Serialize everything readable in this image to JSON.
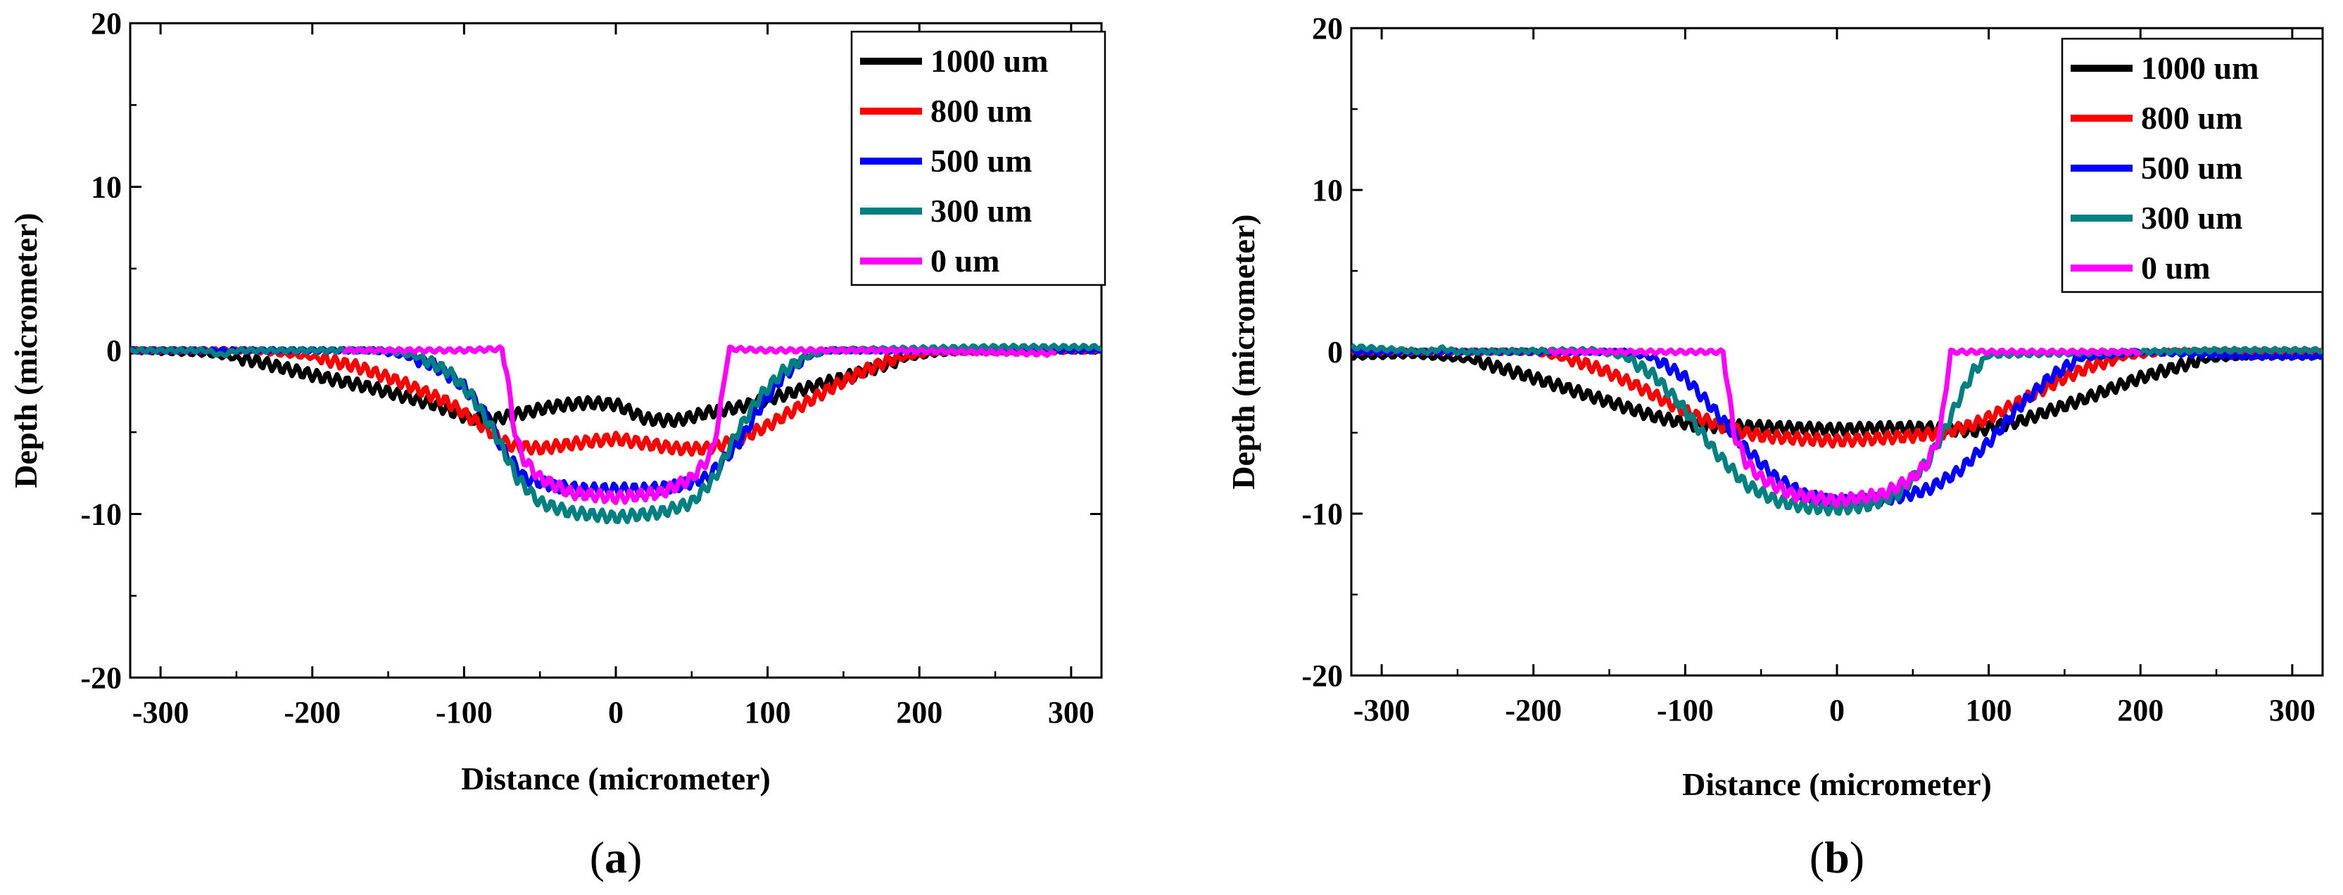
{
  "chart_data": [
    {
      "type": "line",
      "panel_label": "a",
      "xlabel": "Distance (micrometer)",
      "ylabel": "Depth (micrometer)",
      "xlim": [
        -320,
        320
      ],
      "ylim": [
        -20,
        20
      ],
      "xticks": [
        -300,
        -200,
        -100,
        0,
        100,
        200,
        300
      ],
      "yticks": [
        -20,
        -10,
        0,
        10,
        20
      ],
      "legend_position": "top-right",
      "series": [
        {
          "name": "1000 um",
          "color": "#000000",
          "x": [
            -320,
            -270,
            -240,
            -200,
            -160,
            -120,
            -95,
            -80,
            -60,
            -40,
            -20,
            0,
            20,
            40,
            60,
            80,
            100,
            130,
            160,
            190,
            210,
            240,
            300,
            320
          ],
          "y": [
            0,
            -0.2,
            -0.6,
            -1.5,
            -2.3,
            -3.3,
            -4.2,
            -4.2,
            -3.8,
            -3.4,
            -3.2,
            -3.3,
            -4.2,
            -4.3,
            -3.8,
            -3.5,
            -3.0,
            -2.2,
            -1.4,
            -0.5,
            -0.2,
            0,
            0,
            0
          ]
        },
        {
          "name": "800 um",
          "color": "#ff0000",
          "x": [
            -320,
            -240,
            -200,
            -170,
            -140,
            -110,
            -90,
            -70,
            -50,
            -20,
            0,
            20,
            40,
            60,
            80,
            100,
            120,
            140,
            160,
            180,
            210,
            320
          ],
          "y": [
            0,
            0,
            -0.4,
            -1.0,
            -2.0,
            -3.2,
            -4.5,
            -5.8,
            -6.0,
            -5.6,
            -5.4,
            -5.7,
            -6.0,
            -6.0,
            -5.5,
            -4.6,
            -3.5,
            -2.4,
            -1.4,
            -0.6,
            -0.1,
            0
          ]
        },
        {
          "name": "500 um",
          "color": "#0000ff",
          "x": [
            -320,
            -160,
            -140,
            -120,
            -100,
            -85,
            -75,
            -60,
            -40,
            -20,
            0,
            20,
            40,
            60,
            80,
            95,
            110,
            125,
            140,
            320
          ],
          "y": [
            0,
            0,
            -0.3,
            -0.9,
            -2.2,
            -4.0,
            -6.0,
            -7.8,
            -8.3,
            -8.5,
            -8.5,
            -8.5,
            -8.3,
            -7.8,
            -5.8,
            -3.5,
            -1.6,
            -0.4,
            0,
            0
          ]
        },
        {
          "name": "300 um",
          "color": "#008080",
          "x": [
            -320,
            -270,
            -260,
            -250,
            -150,
            -130,
            -110,
            -95,
            -80,
            -65,
            -50,
            -30,
            0,
            30,
            50,
            65,
            80,
            95,
            110,
            125,
            140,
            250,
            320
          ],
          "y": [
            0,
            0,
            -0.3,
            0,
            0,
            -0.4,
            -1.3,
            -2.8,
            -5.0,
            -7.8,
            -9.3,
            -9.9,
            -10.2,
            -9.9,
            -9.3,
            -7.8,
            -5.0,
            -2.8,
            -1.3,
            -0.4,
            0,
            0.2,
            0.2
          ]
        },
        {
          "name": "0 um",
          "color": "#ff00ff",
          "x": [
            -180,
            -100,
            -75,
            -72,
            -68,
            -62,
            -50,
            -30,
            0,
            30,
            50,
            62,
            68,
            72,
            75,
            100,
            180,
            290
          ],
          "y": [
            0,
            0,
            0.1,
            -1.2,
            -4.3,
            -6.5,
            -7.8,
            -8.7,
            -9.0,
            -8.7,
            -7.8,
            -6.5,
            -4.3,
            -1.2,
            0.1,
            0,
            0,
            -0.2
          ]
        }
      ]
    },
    {
      "type": "line",
      "panel_label": "b",
      "xlabel": "Distance (micrometer)",
      "ylabel": "Depth (micrometer)",
      "xlim": [
        -320,
        320
      ],
      "ylim": [
        -20,
        20
      ],
      "xticks": [
        -300,
        -200,
        -100,
        0,
        100,
        200,
        300
      ],
      "yticks": [
        -20,
        -10,
        0,
        10,
        20
      ],
      "legend_position": "top-right",
      "series": [
        {
          "name": "1000 um",
          "color": "#000000",
          "x": [
            -320,
            -280,
            -240,
            -200,
            -160,
            -120,
            -90,
            -60,
            -30,
            0,
            30,
            60,
            90,
            120,
            160,
            200,
            240,
            280,
            320
          ],
          "y": [
            -0.3,
            -0.2,
            -0.5,
            -1.6,
            -2.8,
            -4.0,
            -4.6,
            -4.6,
            -4.7,
            -4.8,
            -4.7,
            -4.7,
            -4.9,
            -4.3,
            -3.0,
            -1.6,
            -0.5,
            -0.2,
            -0.2
          ]
        },
        {
          "name": "800 um",
          "color": "#ff0000",
          "x": [
            -320,
            -200,
            -170,
            -150,
            -130,
            -110,
            -90,
            -70,
            -50,
            -20,
            0,
            20,
            50,
            70,
            90,
            110,
            130,
            150,
            170,
            190,
            220,
            320
          ],
          "y": [
            0,
            0,
            -0.6,
            -1.3,
            -2.2,
            -3.2,
            -4.1,
            -4.8,
            -5.2,
            -5.4,
            -5.5,
            -5.4,
            -5.2,
            -5.0,
            -4.5,
            -3.6,
            -2.6,
            -1.6,
            -0.8,
            -0.3,
            0,
            0
          ]
        },
        {
          "name": "500 um",
          "color": "#0000ff",
          "x": [
            -320,
            -140,
            -120,
            -100,
            -80,
            -60,
            -40,
            -20,
            0,
            20,
            40,
            60,
            80,
            100,
            120,
            140,
            160,
            200,
            270,
            320
          ],
          "y": [
            0,
            0,
            -0.4,
            -1.6,
            -3.7,
            -6.0,
            -7.8,
            -8.9,
            -9.3,
            -9.2,
            -9.0,
            -8.5,
            -7.4,
            -5.6,
            -3.4,
            -1.6,
            -0.4,
            0,
            -0.3,
            -0.3
          ]
        },
        {
          "name": "300 um",
          "color": "#008080",
          "x": [
            -320,
            -270,
            -260,
            -250,
            -160,
            -140,
            -120,
            -100,
            -80,
            -60,
            -40,
            -20,
            0,
            20,
            40,
            60,
            70,
            80,
            90,
            100,
            250,
            320
          ],
          "y": [
            0.3,
            0,
            0.2,
            0,
            0.1,
            -0.3,
            -1.5,
            -3.6,
            -6.2,
            -8.2,
            -9.2,
            -9.6,
            -9.7,
            -9.5,
            -8.8,
            -6.8,
            -5.0,
            -3.0,
            -1.2,
            -0.2,
            0.1,
            0.1
          ]
        },
        {
          "name": "0 um",
          "color": "#ff00ff",
          "x": [
            -190,
            -90,
            -75,
            -72,
            -68,
            -60,
            -50,
            -30,
            0,
            30,
            50,
            60,
            68,
            72,
            75,
            90,
            200
          ],
          "y": [
            0,
            0,
            0,
            -2.0,
            -5.0,
            -6.8,
            -7.8,
            -8.8,
            -9.2,
            -8.8,
            -7.8,
            -6.8,
            -5.0,
            -2.0,
            0,
            0,
            0
          ]
        }
      ]
    }
  ]
}
